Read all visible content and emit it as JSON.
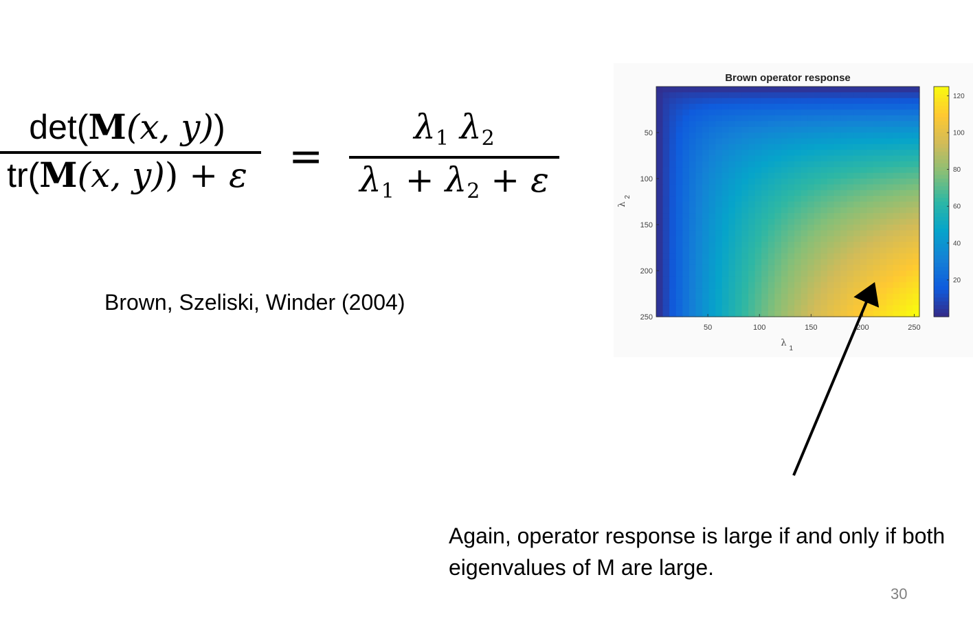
{
  "formula": {
    "lhs_num_pre": "det(",
    "lhs_num_M": "M",
    "lhs_num_args": "(x, y)",
    "lhs_num_post": ")",
    "lhs_den_pre": "tr(",
    "lhs_den_M": "M",
    "lhs_den_args": "(x, y)",
    "lhs_den_post": ") + ",
    "lhs_den_eps": "ε",
    "equals": "=",
    "rhs_num_l1": "λ",
    "rhs_num_s1": "1",
    "rhs_num_l2": "λ",
    "rhs_num_s2": "2",
    "rhs_den_l1": "λ",
    "rhs_den_s1": "1",
    "rhs_den_plus1": " + ",
    "rhs_den_l2": "λ",
    "rhs_den_s2": "2",
    "rhs_den_plus2": " + ",
    "rhs_den_eps": "ε"
  },
  "citation": "Brown, Szeliski, Winder (2004)",
  "caption": "Again, operator response is large if and only if both eigenvalues of M are large.",
  "page_number": "30",
  "chart_data": {
    "type": "heatmap",
    "title": "Brown operator response",
    "xlabel": "λ",
    "xlabel_sub": "1",
    "ylabel": "λ",
    "ylabel_sub": "2",
    "xlim": [
      0,
      255
    ],
    "ylim": [
      0,
      250
    ],
    "y_reversed": true,
    "x_ticks": [
      50,
      100,
      150,
      200,
      250
    ],
    "y_ticks": [
      50,
      100,
      150,
      200,
      250
    ],
    "z_function": "x*y/(x+y)",
    "colorbar": {
      "colormap": "parula",
      "range": [
        0,
        125
      ],
      "ticks": [
        20,
        40,
        60,
        80,
        100,
        120
      ]
    },
    "grid": false,
    "colors": {
      "parula": [
        "#352a87",
        "#0f5cdd",
        "#1481d6",
        "#06a4ca",
        "#2eb7a4",
        "#87bf77",
        "#d1bb59",
        "#fec832",
        "#f9fb0e"
      ]
    }
  }
}
